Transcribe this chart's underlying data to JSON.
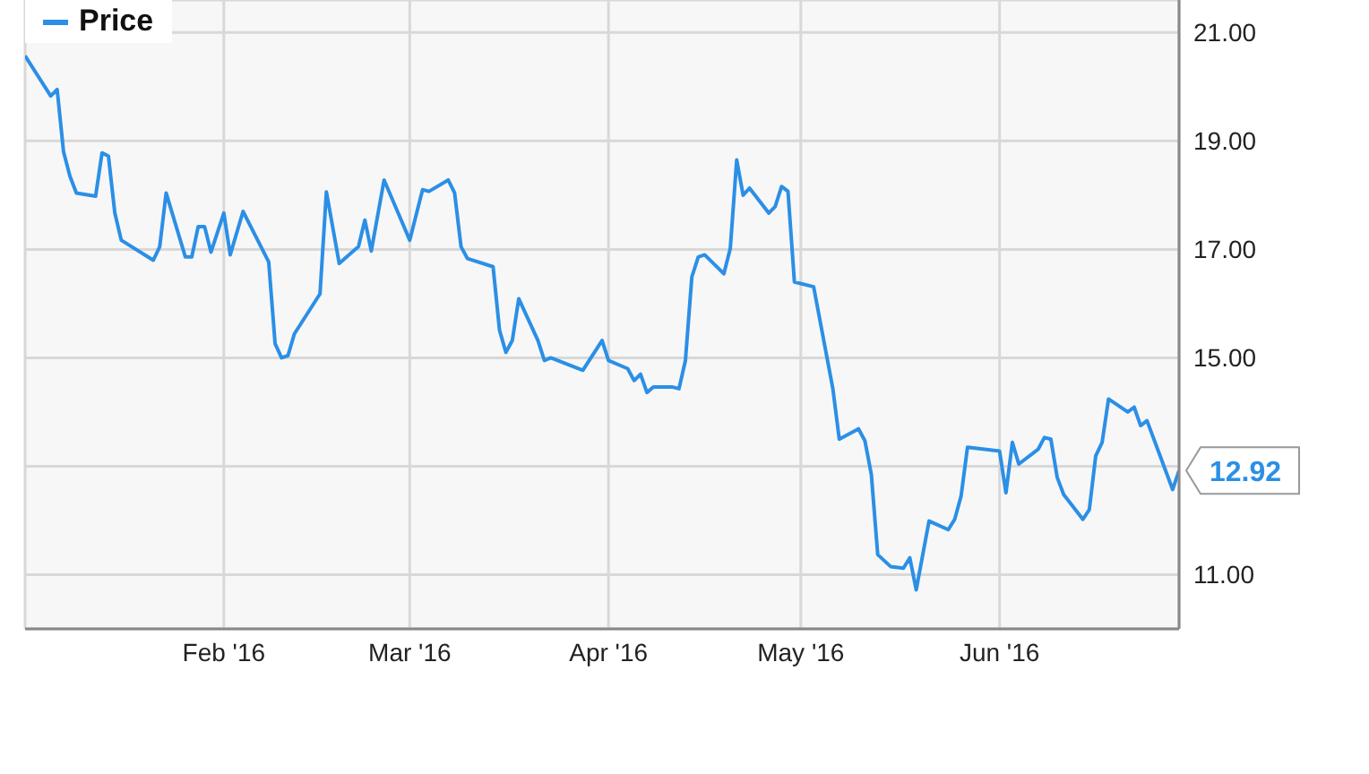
{
  "chart_data": {
    "type": "line",
    "legend": "top left",
    "grid": true,
    "marker": "none",
    "line_style": "solid",
    "xlim": [
      "2016-01-01",
      "2016-06-29"
    ],
    "xticks": [
      {
        "value": "2016-02-01",
        "label": "Feb '16"
      },
      {
        "value": "2016-03-01",
        "label": "Mar '16"
      },
      {
        "value": "2016-04-01",
        "label": "Apr '16"
      },
      {
        "value": "2016-05-01",
        "label": "May '16"
      },
      {
        "value": "2016-06-01",
        "label": "Jun '16"
      }
    ],
    "ylim": [
      10,
      21.6
    ],
    "yticks": [
      {
        "value": 11,
        "label": "11.00"
      },
      {
        "value": 13,
        "label": null
      },
      {
        "value": 15,
        "label": "15.00"
      },
      {
        "value": 17,
        "label": "17.00"
      },
      {
        "value": 19,
        "label": "19.00"
      },
      {
        "value": 21,
        "label": "21.00"
      }
    ],
    "annotations": [
      {
        "text": "12.92",
        "x": "2016-06-29",
        "y": 12.92
      }
    ],
    "x": [
      "2016-01-01",
      "2016-01-05",
      "2016-01-06",
      "2016-01-07",
      "2016-01-08",
      "2016-01-09",
      "2016-01-12",
      "2016-01-13",
      "2016-01-14",
      "2016-01-15",
      "2016-01-16",
      "2016-01-21",
      "2016-01-22",
      "2016-01-23",
      "2016-01-26",
      "2016-01-27",
      "2016-01-28",
      "2016-01-29",
      "2016-01-30",
      "2016-02-01",
      "2016-02-02",
      "2016-02-04",
      "2016-02-08",
      "2016-02-09",
      "2016-02-10",
      "2016-02-11",
      "2016-02-12",
      "2016-02-16",
      "2016-02-17",
      "2016-02-19",
      "2016-02-22",
      "2016-02-23",
      "2016-02-24",
      "2016-02-26",
      "2016-03-01",
      "2016-03-03",
      "2016-03-04",
      "2016-03-07",
      "2016-03-08",
      "2016-03-09",
      "2016-03-10",
      "2016-03-14",
      "2016-03-15",
      "2016-03-16",
      "2016-03-17",
      "2016-03-18",
      "2016-03-21",
      "2016-03-22",
      "2016-03-23",
      "2016-03-28",
      "2016-03-31",
      "2016-04-01",
      "2016-04-04",
      "2016-04-05",
      "2016-04-06",
      "2016-04-07",
      "2016-04-08",
      "2016-04-11",
      "2016-04-12",
      "2016-04-13",
      "2016-04-14",
      "2016-04-15",
      "2016-04-16",
      "2016-04-19",
      "2016-04-20",
      "2016-04-21",
      "2016-04-22",
      "2016-04-23",
      "2016-04-26",
      "2016-04-27",
      "2016-04-28",
      "2016-04-29",
      "2016-04-30",
      "2016-05-03",
      "2016-05-06",
      "2016-05-07",
      "2016-05-10",
      "2016-05-11",
      "2016-05-12",
      "2016-05-13",
      "2016-05-15",
      "2016-05-17",
      "2016-05-18",
      "2016-05-19",
      "2016-05-21",
      "2016-05-24",
      "2016-05-25",
      "2016-05-26",
      "2016-05-27",
      "2016-06-01",
      "2016-06-02",
      "2016-06-03",
      "2016-06-04",
      "2016-06-07",
      "2016-06-08",
      "2016-06-09",
      "2016-06-10",
      "2016-06-11",
      "2016-06-14",
      "2016-06-15",
      "2016-06-16",
      "2016-06-17",
      "2016-06-18",
      "2016-06-21",
      "2016-06-22",
      "2016-06-23",
      "2016-06-24",
      "2016-06-28",
      "2016-06-29"
    ],
    "series": [
      {
        "name": "Price",
        "color": "#2b8fe6",
        "values": [
          20.57,
          19.83,
          19.95,
          18.8,
          18.35,
          18.04,
          17.98,
          18.78,
          18.72,
          17.67,
          17.17,
          16.8,
          17.05,
          18.04,
          16.86,
          16.86,
          17.42,
          17.42,
          16.95,
          17.67,
          16.9,
          17.7,
          16.77,
          15.26,
          15.0,
          15.04,
          15.44,
          16.18,
          18.06,
          16.74,
          17.05,
          17.54,
          16.97,
          18.28,
          17.17,
          18.1,
          18.07,
          18.28,
          18.04,
          17.05,
          16.83,
          16.68,
          15.51,
          15.1,
          15.32,
          16.09,
          15.32,
          14.95,
          15.0,
          14.77,
          15.32,
          14.95,
          14.8,
          14.58,
          14.7,
          14.36,
          14.46,
          14.46,
          14.43,
          14.95,
          16.49,
          16.86,
          16.9,
          16.55,
          17.02,
          18.65,
          18.0,
          18.13,
          17.67,
          17.79,
          18.16,
          18.07,
          16.4,
          16.31,
          14.43,
          13.5,
          13.69,
          13.47,
          12.85,
          11.37,
          11.15,
          11.12,
          11.31,
          10.72,
          11.99,
          11.83,
          12.02,
          12.45,
          13.35,
          13.28,
          12.51,
          13.44,
          13.04,
          13.31,
          13.53,
          13.5,
          12.79,
          12.48,
          12.02,
          12.2,
          13.19,
          13.44,
          14.24,
          14.0,
          14.09,
          13.75,
          13.84,
          12.57,
          12.92
        ]
      }
    ]
  }
}
